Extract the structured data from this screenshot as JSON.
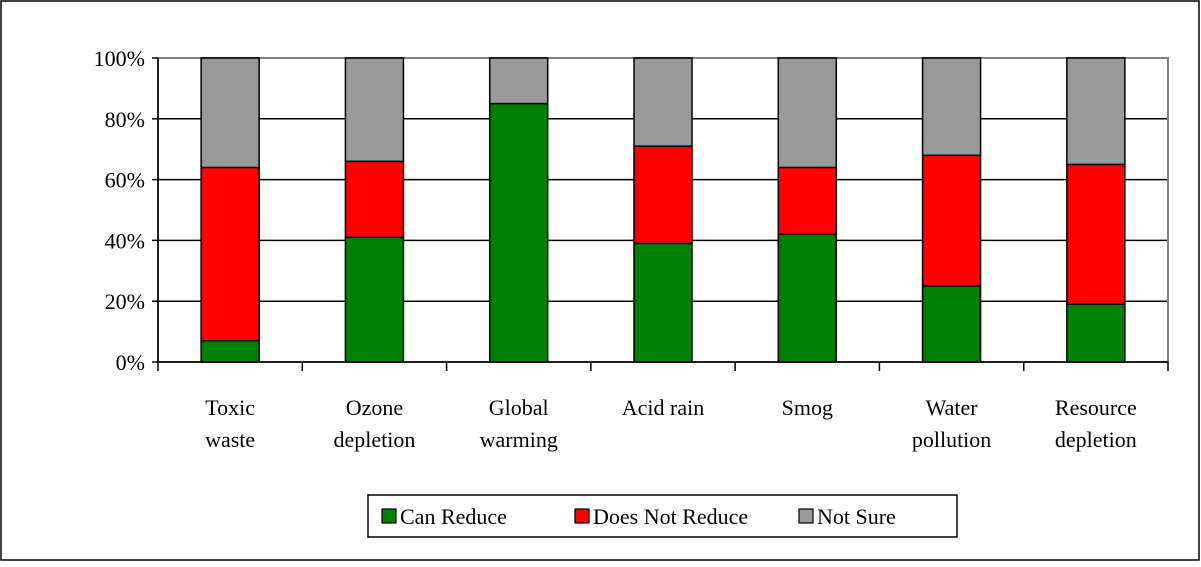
{
  "chart_data": {
    "type": "bar",
    "stacked": true,
    "percent_stacked": true,
    "categories": [
      [
        "Toxic",
        "waste"
      ],
      [
        "Ozone",
        "depletion"
      ],
      [
        "Global",
        "warming"
      ],
      [
        "Acid rain"
      ],
      [
        "Smog"
      ],
      [
        "Water",
        "pollution"
      ],
      [
        "Resource",
        "depletion"
      ]
    ],
    "series": [
      {
        "name": "Can Reduce",
        "color": "#008000",
        "values": [
          7,
          41,
          85,
          39,
          42,
          25,
          19
        ]
      },
      {
        "name": "Does Not Reduce",
        "color": "#ff0000",
        "values": [
          57,
          25,
          0,
          32,
          22,
          43,
          46
        ]
      },
      {
        "name": "Not Sure",
        "color": "#999999",
        "values": [
          36,
          34,
          15,
          29,
          36,
          32,
          35
        ]
      }
    ],
    "y_ticks": [
      "0%",
      "20%",
      "40%",
      "60%",
      "80%",
      "100%"
    ],
    "ylim": [
      0,
      100
    ],
    "grid": true,
    "legend_position": "bottom"
  }
}
